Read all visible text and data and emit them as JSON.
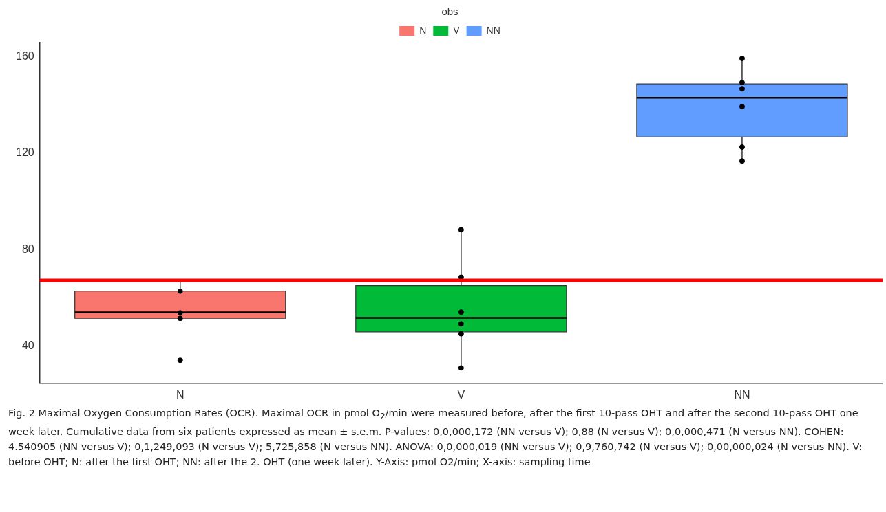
{
  "chart_data": {
    "type": "box",
    "legend_title": "obs",
    "legend": "top",
    "categories": [
      "N",
      "V",
      "NN"
    ],
    "series": [
      {
        "name": "N",
        "color": "#f8766d",
        "boxes": [
          {
            "low": 51.4,
            "q1": 51.4,
            "median": 53.9,
            "q3": 62.7,
            "high": 67
          },
          null,
          null
        ]
      },
      {
        "name": "V",
        "color": "#00ba38",
        "boxes": [
          null,
          {
            "low": 30.8,
            "q1": 45.8,
            "median": 51.6,
            "q3": 65,
            "high": 88.2
          },
          null
        ]
      },
      {
        "name": "NN",
        "color": "#619cff",
        "boxes": [
          null,
          null,
          {
            "low": 116.8,
            "q1": 126.8,
            "median": 143.1,
            "q3": 148.8,
            "high": 159.4
          }
        ]
      },
      {
        "type": "scatter",
        "color": "#000000",
        "x": [
          "N",
          "N",
          "N",
          "N",
          "V",
          "V",
          "V",
          "V",
          "V",
          "V",
          "NN",
          "NN",
          "NN",
          "NN",
          "NN",
          "NN"
        ],
        "values": [
          62.7,
          53.7,
          51.4,
          34,
          88.2,
          68.5,
          54,
          49.1,
          45,
          30.8,
          159.4,
          149.4,
          146.8,
          139.4,
          122.6,
          116.8
        ]
      }
    ],
    "marker": "circle",
    "ylim": [
      24.4,
      166
    ],
    "yticks": [
      40,
      80,
      120,
      160
    ],
    "grid": false,
    "ref_lines": [
      {
        "axis": "y",
        "value": 67.2,
        "color": "#ff0000"
      }
    ],
    "annotations": [
      "Fig. 2  Maximal Oxygen Consumption Rates (OCR). Maximal OCR in pmol O$_{2}$/min were measured before, after the first 10-pass OHT and after the second 10-pass OHT one week later. Cumulative data from six patients expressed as mean ± s.e.m. P-values: 0,0,000,172 (NN versus V); 0,88 (N versus V); 0,0,000,471 (N versus NN). COHEN: 4.540905 (NN versus V); 0,1,249,093 (N versus V); 5,725,858 (N versus NN). ANOVA: 0,0,000,019 (NN versus V); 0,9,760,742 (N versus V); 0,00,000,024 (N versus NN). V: before OHT; N: after the first OHT; NN: after the 2. OHT (one week later). Y-Axis: pmol O2/min; X-axis: sampling time"
    ]
  }
}
